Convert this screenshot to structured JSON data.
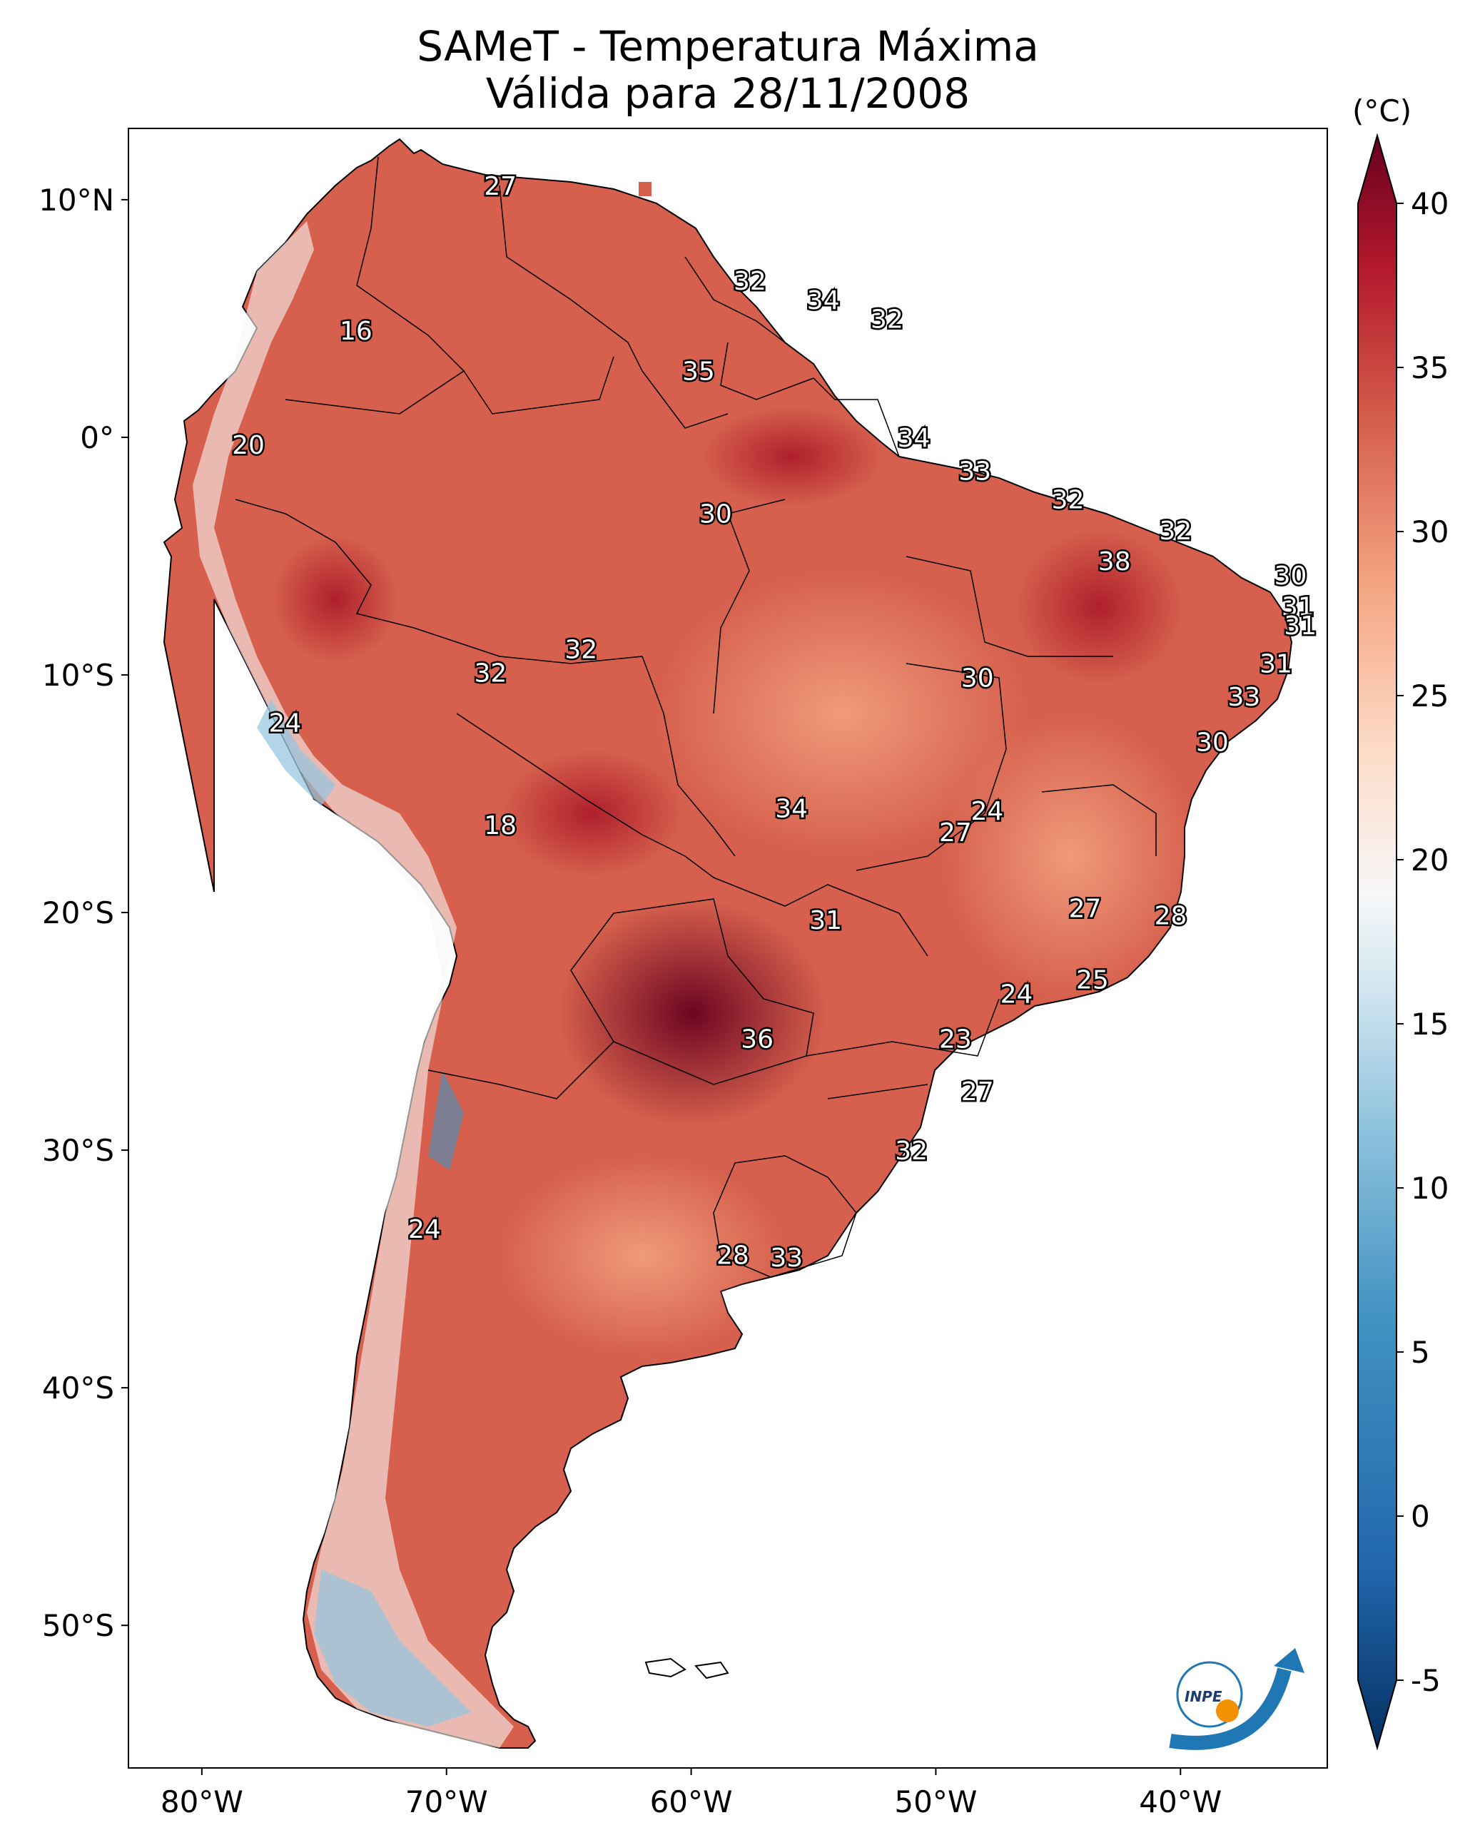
{
  "title": "SAMeT - Temperatura Máxima",
  "subtitle": "Válida para 28/11/2008",
  "colorbar": {
    "unit": "(°C)",
    "ticks": [
      "-5",
      "0",
      "5",
      "10",
      "15",
      "20",
      "25",
      "30",
      "35",
      "40"
    ],
    "min": -5,
    "max": 40,
    "colormap": "RdBu_r",
    "extend": "both"
  },
  "axes": {
    "lon_ticks": [
      "80°W",
      "70°W",
      "60°W",
      "50°W",
      "40°W"
    ],
    "lat_ticks": [
      "10°N",
      "0°",
      "10°S",
      "20°S",
      "30°S",
      "40°S",
      "50°S"
    ],
    "lon_range": [
      -83,
      -34
    ],
    "lat_range": [
      -56,
      13
    ]
  },
  "logo": "INPE",
  "labels": [
    {
      "text": "27",
      "lon": -67.8,
      "lat": 10.6
    },
    {
      "text": "32",
      "lon": -57.6,
      "lat": 6.6
    },
    {
      "text": "34",
      "lon": -54.6,
      "lat": 5.8
    },
    {
      "text": "32",
      "lon": -52.0,
      "lat": 5.0
    },
    {
      "text": "16",
      "lon": -73.7,
      "lat": 4.5
    },
    {
      "text": "35",
      "lon": -59.7,
      "lat": 2.8
    },
    {
      "text": "34",
      "lon": -50.9,
      "lat": 0.0
    },
    {
      "text": "20",
      "lon": -78.1,
      "lat": -0.3
    },
    {
      "text": "33",
      "lon": -48.4,
      "lat": -1.4
    },
    {
      "text": "32",
      "lon": -44.6,
      "lat": -2.6
    },
    {
      "text": "30",
      "lon": -59.0,
      "lat": -3.2
    },
    {
      "text": "32",
      "lon": -40.2,
      "lat": -3.9
    },
    {
      "text": "38",
      "lon": -42.7,
      "lat": -5.2
    },
    {
      "text": "30",
      "lon": -35.5,
      "lat": -5.8
    },
    {
      "text": "31",
      "lon": -35.2,
      "lat": -7.1
    },
    {
      "text": "31",
      "lon": -35.1,
      "lat": -7.9
    },
    {
      "text": "32",
      "lon": -64.5,
      "lat": -8.9
    },
    {
      "text": "31",
      "lon": -36.1,
      "lat": -9.5
    },
    {
      "text": "32",
      "lon": -68.2,
      "lat": -9.9
    },
    {
      "text": "30",
      "lon": -48.3,
      "lat": -10.1
    },
    {
      "text": "33",
      "lon": -37.4,
      "lat": -10.9
    },
    {
      "text": "24",
      "lon": -76.6,
      "lat": -12.0
    },
    {
      "text": "30",
      "lon": -38.7,
      "lat": -12.8
    },
    {
      "text": "34",
      "lon": -55.9,
      "lat": -15.6
    },
    {
      "text": "24",
      "lon": -47.9,
      "lat": -15.7
    },
    {
      "text": "27",
      "lon": -49.2,
      "lat": -16.6
    },
    {
      "text": "18",
      "lon": -67.8,
      "lat": -16.3
    },
    {
      "text": "27",
      "lon": -43.9,
      "lat": -19.8
    },
    {
      "text": "28",
      "lon": -40.4,
      "lat": -20.1
    },
    {
      "text": "31",
      "lon": -54.5,
      "lat": -20.3
    },
    {
      "text": "25",
      "lon": -43.6,
      "lat": -22.8
    },
    {
      "text": "24",
      "lon": -46.7,
      "lat": -23.4
    },
    {
      "text": "36",
      "lon": -57.3,
      "lat": -25.3
    },
    {
      "text": "23",
      "lon": -49.2,
      "lat": -25.3
    },
    {
      "text": "27",
      "lon": -48.3,
      "lat": -27.5
    },
    {
      "text": "32",
      "lon": -51.0,
      "lat": -30.0
    },
    {
      "text": "24",
      "lon": -70.9,
      "lat": -33.3
    },
    {
      "text": "28",
      "lon": -58.3,
      "lat": -34.4
    },
    {
      "text": "33",
      "lon": -56.1,
      "lat": -34.5
    }
  ]
}
